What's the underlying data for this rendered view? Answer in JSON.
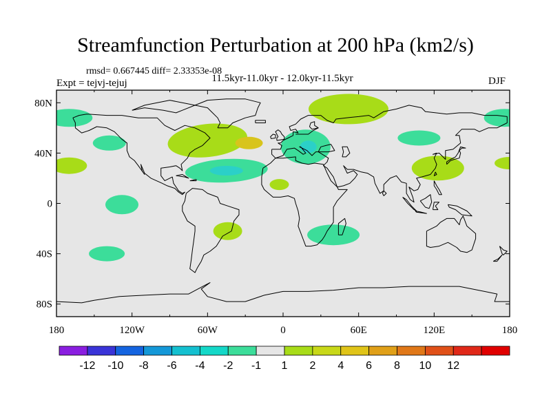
{
  "title": "Streamfunction Perturbation at 200 hPa (km2/s)",
  "stats_line": "rmsd= 0.667445 diff= 2.33353e-08",
  "periods_line": "11.5kyr-11.0kyr - 12.0kyr-11.5kyr",
  "expt_line": "Expt = tejvj-tejuj",
  "season": "DJF",
  "colors": {
    "ocean": "#e6e6e6",
    "neg1": "#3cdd9a",
    "neg2": "#2bd0c8",
    "pos1": "#a8dc18",
    "pos2": "#d8c41c"
  },
  "axes": {
    "x_labels": [
      "180",
      "120W",
      "60W",
      "0",
      "60E",
      "120E",
      "180"
    ],
    "y_labels": [
      "80N",
      "40N",
      "0",
      "40S",
      "80S"
    ]
  },
  "colorbar": {
    "colors": [
      "#8a1ee0",
      "#3a34d8",
      "#1464e0",
      "#1498d8",
      "#14c0d0",
      "#14d8c8",
      "#3cdd9a",
      "#e6e6e6",
      "#a8dc18",
      "#c8d818",
      "#e0c418",
      "#e0a018",
      "#e07818",
      "#e05018",
      "#e02818",
      "#e00000"
    ],
    "labels": [
      "-12",
      "-10",
      "-8",
      "-6",
      "-4",
      "-2",
      "-1",
      "1",
      "2",
      "4",
      "6",
      "8",
      "10",
      "12"
    ]
  },
  "chart_data": {
    "type": "map-contour",
    "variable": "Streamfunction Perturbation at 200 hPa",
    "units": "km2/s",
    "lon_range": [
      -180,
      180
    ],
    "lat_range": [
      -90,
      90
    ],
    "levels": [
      -12,
      -10,
      -8,
      -6,
      -4,
      -2,
      -1,
      1,
      2,
      4,
      6,
      8,
      10,
      12
    ],
    "features": [
      {
        "name": "north-pacific-neg",
        "lon": -170,
        "lat": 68,
        "value": -1.5
      },
      {
        "name": "pacific-pos",
        "lon": -170,
        "lat": 30,
        "value": 1.5
      },
      {
        "name": "northeast-pacific-neg",
        "lon": -138,
        "lat": 48,
        "value": -1.5
      },
      {
        "name": "north-america-atlantic-pos",
        "lon": -60,
        "lat": 50,
        "value": 1.5
      },
      {
        "name": "north-atlantic-pos-core",
        "lon": -27,
        "lat": 48,
        "value": 2.5
      },
      {
        "name": "atlantic-neg",
        "lon": -45,
        "lat": 26,
        "value": -1.5
      },
      {
        "name": "atlantic-neg-core",
        "lon": -45,
        "lat": 26,
        "value": -2.5
      },
      {
        "name": "north-africa-pos",
        "lon": -3,
        "lat": 15,
        "value": 1.5
      },
      {
        "name": "europe-neg",
        "lon": 18,
        "lat": 45,
        "value": -1.5
      },
      {
        "name": "europe-neg-core",
        "lon": 20,
        "lat": 45,
        "value": -2.5
      },
      {
        "name": "siberia-pos",
        "lon": 52,
        "lat": 75,
        "value": 1.5
      },
      {
        "name": "central-asia-neg",
        "lon": 108,
        "lat": 52,
        "value": -1.5
      },
      {
        "name": "east-asia-pos",
        "lon": 123,
        "lat": 28,
        "value": 1.5
      },
      {
        "name": "northwest-pacific-neg",
        "lon": 176,
        "lat": 68,
        "value": -1.5
      },
      {
        "name": "dateline-pos",
        "lon": 180,
        "lat": 32,
        "value": 1.5
      },
      {
        "name": "tropical-pacific-neg",
        "lon": -128,
        "lat": -1,
        "value": -1.5
      },
      {
        "name": "south-atlantic-pos",
        "lon": -44,
        "lat": -22,
        "value": 1.5
      },
      {
        "name": "southern-africa-neg",
        "lon": 40,
        "lat": -25,
        "value": -1.5
      },
      {
        "name": "south-pacific-neg",
        "lon": -140,
        "lat": -40,
        "value": -1.5
      }
    ]
  }
}
